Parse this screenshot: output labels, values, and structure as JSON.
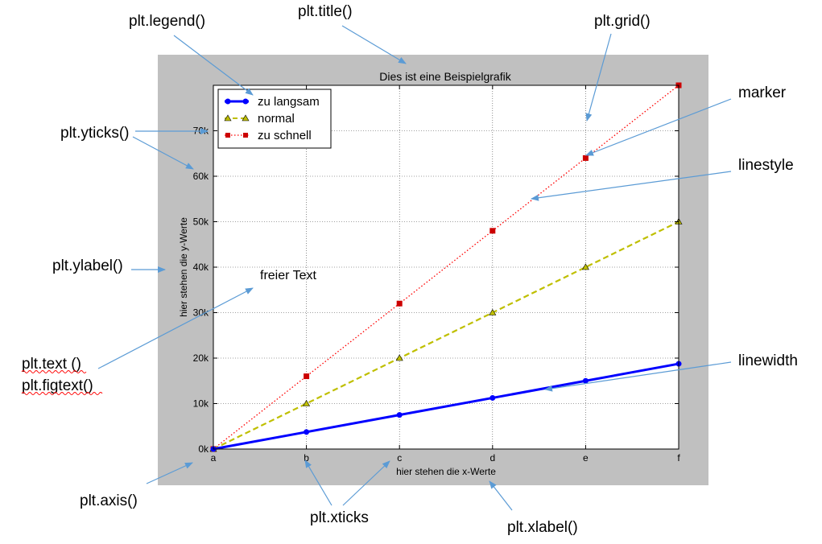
{
  "chart_data": {
    "type": "line",
    "title": "Dies ist eine Beispielgrafik",
    "xlabel": "hier stehen die x-Werte",
    "ylabel": "hier stehen die y-Werte",
    "categories": [
      "a",
      "b",
      "c",
      "d",
      "e",
      "f"
    ],
    "ylim": [
      0,
      80000
    ],
    "yticks": [
      0,
      10000,
      20000,
      30000,
      40000,
      50000,
      60000,
      70000
    ],
    "ytick_labels": [
      "0k",
      "10k",
      "20k",
      "30k",
      "40k",
      "50k",
      "60k",
      "70k"
    ],
    "grid": true,
    "legend_position": "top-left",
    "series": [
      {
        "name": "zu langsam",
        "values": [
          0,
          3750,
          7500,
          11250,
          15000,
          18750
        ],
        "color": "#0000ff",
        "linestyle": "solid",
        "marker": "circle",
        "linewidth": "thick"
      },
      {
        "name": "normal",
        "values": [
          0,
          10000,
          20000,
          30000,
          40000,
          50000
        ],
        "color": "#bfbf00",
        "linestyle": "dashed",
        "marker": "triangle"
      },
      {
        "name": "zu schnell",
        "values": [
          0,
          16000,
          32000,
          48000,
          64000,
          80000
        ],
        "color": "#ff0000",
        "linestyle": "dotted",
        "marker": "square"
      }
    ],
    "annotation": "freier Text"
  },
  "callouts": {
    "legend": "plt.legend()",
    "title": "plt.title()",
    "grid": "plt.grid()",
    "yticks": "plt.yticks()",
    "ylabel": "plt.ylabel()",
    "text": "plt.text ()",
    "figtext": "plt.figtext()",
    "axis": "plt.axis()",
    "xticks": "plt.xticks",
    "xlabel": "plt.xlabel()",
    "marker": "marker",
    "linestyle": "linestyle",
    "linewidth": "linewidth"
  },
  "colors": {
    "figure_background": "#c0c0c0",
    "plot_background": "#ffffff",
    "callout_arrow": "#5b9bd5"
  }
}
